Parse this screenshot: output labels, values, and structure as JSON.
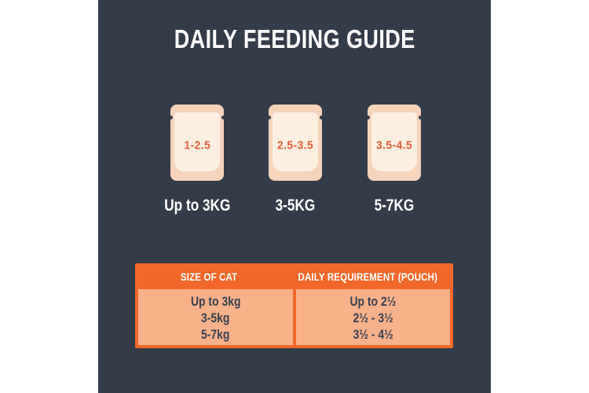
{
  "title": "DAILY FEEDING GUIDE",
  "pouches": [
    {
      "amount": "1-2.5",
      "weight_label": "Up to 3KG"
    },
    {
      "amount": "2.5-3.5",
      "weight_label": "3-5KG"
    },
    {
      "amount": "3.5-4.5",
      "weight_label": "5-7KG"
    }
  ],
  "table": {
    "headers": [
      "SIZE OF CAT",
      "DAILY REQUIREMENT (POUCH)"
    ],
    "rows": [
      {
        "size": "Up to 3kg",
        "requirement": "Up to 2½"
      },
      {
        "size": "3-5kg",
        "requirement": "2½ - 3½"
      },
      {
        "size": "5-7kg",
        "requirement": "3½ - 4½"
      }
    ]
  },
  "colors": {
    "panel-bg": "#353c49",
    "pouch-outer": "#f6d3bb",
    "pouch-inner": "#fdeee2",
    "pouch-number": "#e15f38",
    "table-orange": "#f2682a",
    "table-cell": "#f9b189",
    "table-text": "#3a4150",
    "white": "#ffffff"
  }
}
